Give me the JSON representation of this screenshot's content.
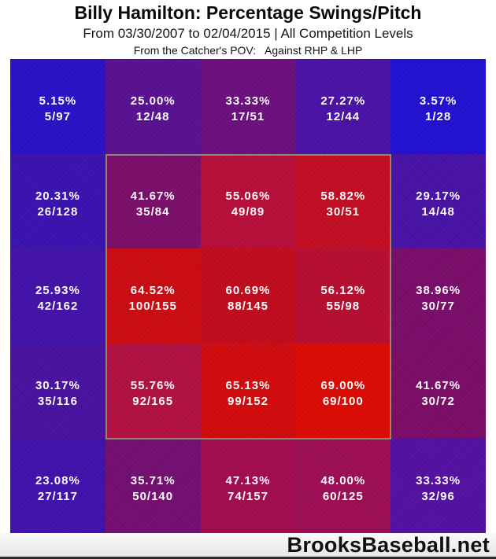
{
  "header": {
    "title": "Billy Hamilton: Percentage Swings/Pitch",
    "subtitle": "From 03/30/2007 to 02/04/2015 | All Competition Levels",
    "pov_line": "From the Catcher's POV:   Against RHP & LHP"
  },
  "footer": {
    "brand": "BrooksBaseball.net"
  },
  "colors": {
    "strike_zone_border": "#858a7c",
    "cell_text": "#ffffff",
    "low_value_blue": "#2212d1",
    "high_value_red": "#dc0c05"
  },
  "chart_data": {
    "type": "heatmap",
    "title": "Billy Hamilton: Percentage Swings/Pitch",
    "subtitle": "From 03/30/2007 to 02/04/2015 | All Competition Levels",
    "pov": "From the Catcher's POV: Against RHP & LHP",
    "rows": 5,
    "cols": 5,
    "cell_label_format": "swing percentage over swings/pitches",
    "strike_zone": "inner 3x3 region (rows 2-4, cols 2-4) outlined in gray",
    "legend_position": "none",
    "value_range_pct": [
      3.57,
      69.0
    ],
    "cells": [
      [
        {
          "pct": "5.15%",
          "frac": "5/97",
          "value": 5.15,
          "color": "#2a13c7"
        },
        {
          "pct": "25.00%",
          "frac": "12/48",
          "value": 25.0,
          "color": "#5a1292"
        },
        {
          "pct": "33.33%",
          "frac": "17/51",
          "value": 33.33,
          "color": "#6d107e"
        },
        {
          "pct": "27.27%",
          "frac": "12/44",
          "value": 27.27,
          "color": "#4b13a6"
        },
        {
          "pct": "3.57%",
          "frac": "1/28",
          "value": 3.57,
          "color": "#2212d1"
        }
      ],
      [
        {
          "pct": "20.31%",
          "frac": "26/128",
          "value": 20.31,
          "color": "#3c13b0"
        },
        {
          "pct": "41.67%",
          "frac": "35/84",
          "value": 41.67,
          "color": "#7c0f6b"
        },
        {
          "pct": "55.06%",
          "frac": "49/89",
          "value": 55.06,
          "color": "#b70f39"
        },
        {
          "pct": "58.82%",
          "frac": "30/51",
          "value": 58.82,
          "color": "#c30e24"
        },
        {
          "pct": "29.17%",
          "frac": "14/48",
          "value": 29.17,
          "color": "#4913a5"
        }
      ],
      [
        {
          "pct": "25.93%",
          "frac": "42/162",
          "value": 25.93,
          "color": "#4413a9"
        },
        {
          "pct": "64.52%",
          "frac": "100/155",
          "value": 64.52,
          "color": "#cb0c12"
        },
        {
          "pct": "60.69%",
          "frac": "88/145",
          "value": 60.69,
          "color": "#c10d1e"
        },
        {
          "pct": "56.12%",
          "frac": "55/98",
          "value": 56.12,
          "color": "#b80f31"
        },
        {
          "pct": "38.96%",
          "frac": "30/77",
          "value": 38.96,
          "color": "#7b0e6b"
        }
      ],
      [
        {
          "pct": "30.17%",
          "frac": "35/116",
          "value": 30.17,
          "color": "#4a13a0"
        },
        {
          "pct": "55.76%",
          "frac": "92/165",
          "value": 55.76,
          "color": "#b21143"
        },
        {
          "pct": "65.13%",
          "frac": "99/152",
          "value": 65.13,
          "color": "#d20c0e"
        },
        {
          "pct": "69.00%",
          "frac": "69/100",
          "value": 69.0,
          "color": "#dc0c05"
        },
        {
          "pct": "41.67%",
          "frac": "30/72",
          "value": 41.67,
          "color": "#7c0e68"
        }
      ],
      [
        {
          "pct": "23.08%",
          "frac": "27/117",
          "value": 23.08,
          "color": "#4113ac"
        },
        {
          "pct": "35.71%",
          "frac": "50/140",
          "value": 35.71,
          "color": "#750f72"
        },
        {
          "pct": "47.13%",
          "frac": "74/157",
          "value": 47.13,
          "color": "#a30d50"
        },
        {
          "pct": "48.00%",
          "frac": "60/125",
          "value": 48.0,
          "color": "#9d0e55"
        },
        {
          "pct": "33.33%",
          "frac": "32/96",
          "value": 33.33,
          "color": "#5512a2"
        }
      ]
    ]
  }
}
